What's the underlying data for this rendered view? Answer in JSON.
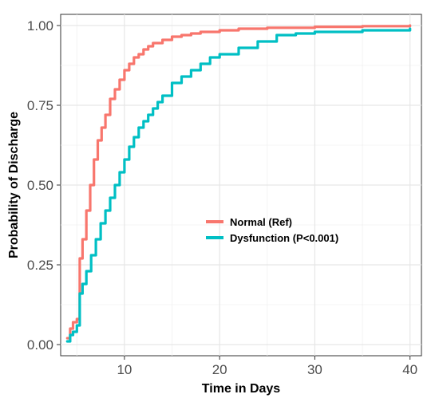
{
  "chart_data": {
    "type": "line",
    "step": true,
    "title": "",
    "xlabel": "Time in Days",
    "ylabel": "Probability of Discharge",
    "xlim": [
      3.3,
      41.2
    ],
    "ylim": [
      -0.035,
      1.035
    ],
    "x_ticks": [
      10,
      20,
      30,
      40
    ],
    "y_ticks": [
      0.0,
      0.25,
      0.5,
      0.75,
      1.0
    ],
    "x_tick_labels": [
      "10",
      "20",
      "30",
      "40"
    ],
    "y_tick_labels": [
      "0.00",
      "0.25",
      "0.50",
      "0.75",
      "1.00"
    ],
    "grid": true,
    "legend_position": "inside, center-right",
    "series": [
      {
        "name": "Normal (Ref)",
        "color": "#f8766d",
        "x": [
          4,
          4.3,
          4.6,
          5,
          5.3,
          5.6,
          6,
          6.4,
          6.8,
          7.2,
          7.6,
          8,
          8.5,
          9,
          9.5,
          10,
          10.5,
          11,
          11.5,
          12,
          12.5,
          13,
          14,
          15,
          16,
          17,
          18,
          20,
          22,
          25,
          30,
          35,
          40
        ],
        "y": [
          0.02,
          0.05,
          0.07,
          0.08,
          0.27,
          0.33,
          0.42,
          0.5,
          0.58,
          0.64,
          0.68,
          0.72,
          0.77,
          0.8,
          0.83,
          0.86,
          0.88,
          0.9,
          0.91,
          0.925,
          0.935,
          0.945,
          0.955,
          0.965,
          0.97,
          0.975,
          0.98,
          0.985,
          0.99,
          0.993,
          0.996,
          0.998,
          1.0
        ]
      },
      {
        "name": "Dysfunction (P<0.001)",
        "color": "#00bfc4",
        "x": [
          4,
          4.3,
          4.6,
          5,
          5.3,
          5.6,
          6,
          6.5,
          7,
          7.5,
          8,
          8.5,
          9,
          9.5,
          10,
          10.5,
          11,
          11.5,
          12,
          12.5,
          13,
          13.5,
          14,
          15,
          16,
          17,
          18,
          19,
          20,
          22,
          24,
          26,
          28,
          30,
          35,
          40
        ],
        "y": [
          0.01,
          0.03,
          0.04,
          0.06,
          0.16,
          0.19,
          0.23,
          0.28,
          0.33,
          0.38,
          0.42,
          0.46,
          0.5,
          0.54,
          0.58,
          0.62,
          0.65,
          0.68,
          0.7,
          0.72,
          0.74,
          0.76,
          0.78,
          0.82,
          0.84,
          0.86,
          0.88,
          0.9,
          0.91,
          0.93,
          0.95,
          0.97,
          0.975,
          0.98,
          0.985,
          0.99
        ]
      }
    ]
  }
}
